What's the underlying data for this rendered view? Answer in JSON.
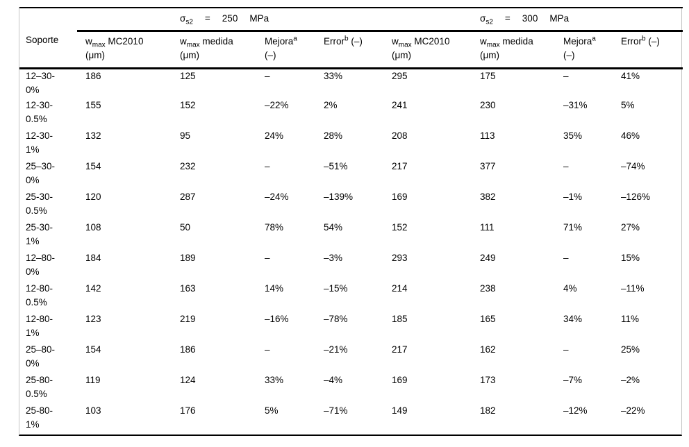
{
  "table": {
    "group_headers": [
      {
        "sigma_base": "σ",
        "sigma_sub": "s2",
        "equals": "=",
        "value": "250",
        "unit": "MPa"
      },
      {
        "sigma_base": "σ",
        "sigma_sub": "s2",
        "equals": "=",
        "value": "300",
        "unit": "MPa"
      }
    ],
    "columns": {
      "soporte": "Soporte",
      "wmax_mc2010": {
        "base": "w",
        "sub": "max",
        "rest": "MC2010",
        "unit": "(μm)"
      },
      "wmax_medida": {
        "base": "w",
        "sub": "max",
        "rest": "medida",
        "unit": "(μm)"
      },
      "mejora": {
        "text": "Mejora",
        "sup": "a",
        "unit": "(–)"
      },
      "error": {
        "text": "Error",
        "sup": "b",
        "unit": "(–)"
      }
    },
    "rows": [
      {
        "label": "12–30-\n0%",
        "cells": [
          "186",
          "125",
          "–",
          "33%",
          "295",
          "175",
          "–",
          "41%"
        ]
      },
      {
        "label": "12-30-\n0.5%",
        "cells": [
          "155",
          "152",
          "–22%",
          "2%",
          "241",
          "230",
          "–31%",
          "5%"
        ]
      },
      {
        "label": "12-30-\n1%",
        "cells": [
          "132",
          "95",
          "24%",
          "28%",
          "208",
          "113",
          "35%",
          "46%"
        ]
      },
      {
        "label": "25–30-\n0%",
        "cells": [
          "154",
          "232",
          "–",
          "–51%",
          "217",
          "377",
          "–",
          "–74%"
        ]
      },
      {
        "label": "25-30-\n0.5%",
        "cells": [
          "120",
          "287",
          "–24%",
          "–139%",
          "169",
          "382",
          "–1%",
          "–126%"
        ]
      },
      {
        "label": "25-30-\n1%",
        "cells": [
          "108",
          "50",
          "78%",
          "54%",
          "152",
          "111",
          "71%",
          "27%"
        ]
      },
      {
        "label": "12–80-\n0%",
        "cells": [
          "184",
          "189",
          "–",
          "–3%",
          "293",
          "249",
          "–",
          "15%"
        ]
      },
      {
        "label": "12-80-\n0.5%",
        "cells": [
          "142",
          "163",
          "14%",
          "–15%",
          "214",
          "238",
          "4%",
          "–11%"
        ]
      },
      {
        "label": "12-80-\n1%",
        "cells": [
          "123",
          "219",
          "–16%",
          "–78%",
          "185",
          "165",
          "34%",
          "11%"
        ]
      },
      {
        "label": "25–80-\n0%",
        "cells": [
          "154",
          "186",
          "–",
          "–21%",
          "217",
          "162",
          "–",
          "25%"
        ]
      },
      {
        "label": "25-80-\n0.5%",
        "cells": [
          "119",
          "124",
          "33%",
          "–4%",
          "169",
          "173",
          "–7%",
          "–2%"
        ]
      },
      {
        "label": "25-80-\n1%",
        "cells": [
          "103",
          "176",
          "5%",
          "–71%",
          "149",
          "182",
          "–12%",
          "–22%"
        ]
      }
    ],
    "cell_names": [
      "cell-wmax-mc2010-250",
      "cell-wmax-medida-250",
      "cell-mejora-250",
      "cell-error-250",
      "cell-wmax-mc2010-300",
      "cell-wmax-medida-300",
      "cell-mejora-300",
      "cell-error-300"
    ]
  }
}
